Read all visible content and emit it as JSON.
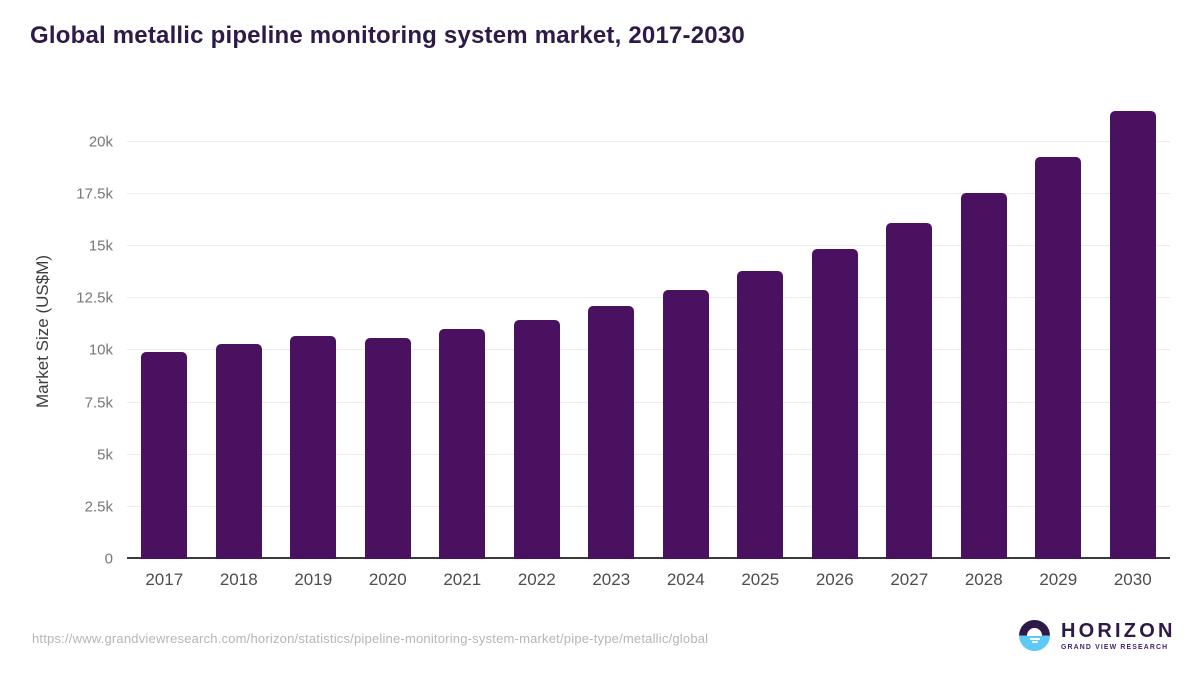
{
  "title": "Global metallic pipeline monitoring system market, 2017-2030",
  "chart_data": {
    "type": "bar",
    "title": "Global metallic pipeline monitoring system market, 2017-2030",
    "categories": [
      "2017",
      "2018",
      "2019",
      "2020",
      "2021",
      "2022",
      "2023",
      "2024",
      "2025",
      "2026",
      "2027",
      "2028",
      "2029",
      "2030"
    ],
    "values": [
      9940,
      10310,
      10680,
      10600,
      11020,
      11480,
      12150,
      12900,
      13810,
      14850,
      16110,
      17550,
      19280,
      21500
    ],
    "xlabel": "",
    "ylabel": "Market Size (US$M)",
    "ylim": [
      0,
      21800
    ],
    "y_ticks": [
      {
        "value": 0,
        "label": "0"
      },
      {
        "value": 2500,
        "label": "2.5k"
      },
      {
        "value": 5000,
        "label": "5k"
      },
      {
        "value": 7500,
        "label": "7.5k"
      },
      {
        "value": 10000,
        "label": "10k"
      },
      {
        "value": 12500,
        "label": "12.5k"
      },
      {
        "value": 15000,
        "label": "15k"
      },
      {
        "value": 17500,
        "label": "17.5k"
      },
      {
        "value": 20000,
        "label": "20k"
      }
    ],
    "grid": true,
    "legend_position": "none",
    "bar_color": "#4a1161"
  },
  "colors": {
    "title_text": "#2e1a47",
    "bar": "#4a1161",
    "gridline": "#ececec",
    "axis_line": "#3b3b3b",
    "y_tick_text": "#777777",
    "x_tick_text": "#4d4d4d",
    "url_text": "#b5b5b5",
    "logo_blue": "#5ec9f5",
    "logo_purple": "#2e1a47"
  },
  "footer": {
    "source_url": "https://www.grandviewresearch.com/horizon/statistics/pipeline-monitoring-system-market/pipe-type/metallic/global",
    "logo": {
      "title": "HORIZON",
      "subtitle": "GRAND VIEW RESEARCH"
    }
  }
}
